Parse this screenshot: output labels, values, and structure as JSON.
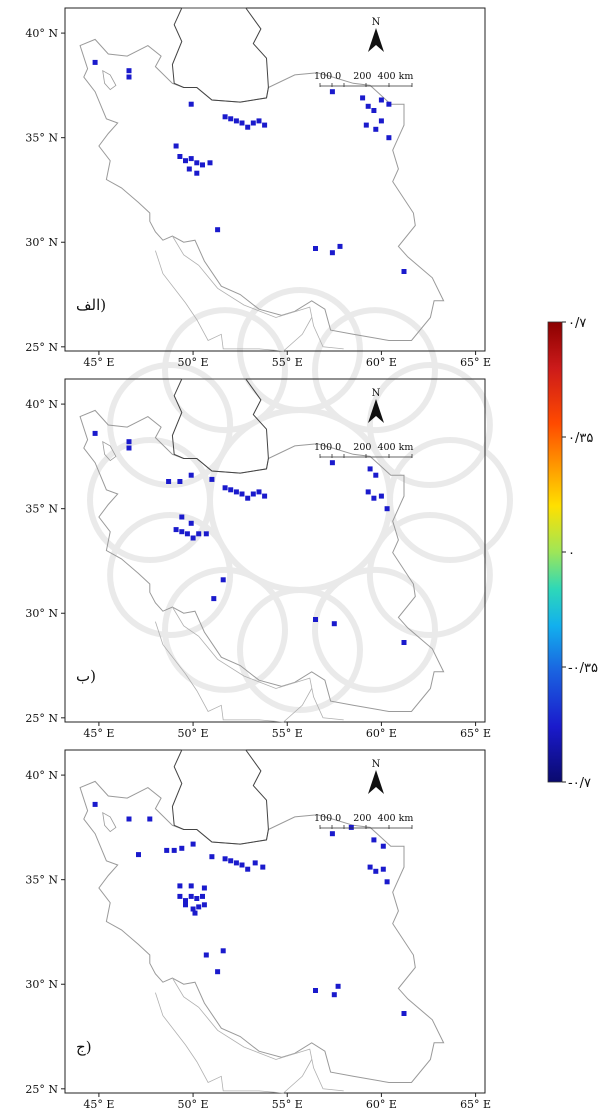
{
  "maps": [
    {
      "panel_label": "الف)",
      "points": [
        [
          44.8,
          38.6
        ],
        [
          46.6,
          38.2
        ],
        [
          46.6,
          37.9
        ],
        [
          49.9,
          36.6
        ],
        [
          51.7,
          36.0
        ],
        [
          52.0,
          35.9
        ],
        [
          52.3,
          35.8
        ],
        [
          52.6,
          35.7
        ],
        [
          52.9,
          35.5
        ],
        [
          53.2,
          35.7
        ],
        [
          53.5,
          35.8
        ],
        [
          53.8,
          35.6
        ],
        [
          49.1,
          34.6
        ],
        [
          49.3,
          34.1
        ],
        [
          49.6,
          33.9
        ],
        [
          49.9,
          34.0
        ],
        [
          50.2,
          33.8
        ],
        [
          50.5,
          33.7
        ],
        [
          50.9,
          33.8
        ],
        [
          49.8,
          33.5
        ],
        [
          50.2,
          33.3
        ],
        [
          51.3,
          30.6
        ],
        [
          56.5,
          29.7
        ],
        [
          57.4,
          29.5
        ],
        [
          57.8,
          29.8
        ],
        [
          57.4,
          37.2
        ],
        [
          59.0,
          36.9
        ],
        [
          59.3,
          36.5
        ],
        [
          59.6,
          36.3
        ],
        [
          60.0,
          36.8
        ],
        [
          60.4,
          36.6
        ],
        [
          59.2,
          35.6
        ],
        [
          59.7,
          35.4
        ],
        [
          60.0,
          35.8
        ],
        [
          60.4,
          35.0
        ],
        [
          61.2,
          28.6
        ]
      ]
    },
    {
      "panel_label": "ب)",
      "points": [
        [
          44.8,
          38.6
        ],
        [
          46.6,
          38.2
        ],
        [
          46.6,
          37.9
        ],
        [
          48.7,
          36.3
        ],
        [
          49.3,
          36.3
        ],
        [
          49.9,
          36.6
        ],
        [
          51.0,
          36.4
        ],
        [
          51.7,
          36.0
        ],
        [
          52.0,
          35.9
        ],
        [
          52.3,
          35.8
        ],
        [
          52.6,
          35.7
        ],
        [
          52.9,
          35.5
        ],
        [
          53.2,
          35.7
        ],
        [
          53.5,
          35.8
        ],
        [
          53.8,
          35.6
        ],
        [
          49.4,
          34.6
        ],
        [
          49.1,
          34.0
        ],
        [
          49.4,
          33.9
        ],
        [
          49.7,
          33.8
        ],
        [
          50.0,
          33.6
        ],
        [
          50.3,
          33.8
        ],
        [
          50.7,
          33.8
        ],
        [
          49.9,
          34.3
        ],
        [
          51.1,
          30.7
        ],
        [
          51.6,
          31.6
        ],
        [
          56.5,
          29.7
        ],
        [
          57.5,
          29.5
        ],
        [
          57.4,
          37.2
        ],
        [
          59.4,
          36.9
        ],
        [
          59.7,
          36.6
        ],
        [
          59.3,
          35.8
        ],
        [
          59.6,
          35.5
        ],
        [
          60.0,
          35.6
        ],
        [
          60.3,
          35.0
        ],
        [
          61.2,
          28.6
        ]
      ]
    },
    {
      "panel_label": "ج)",
      "points": [
        [
          44.8,
          38.6
        ],
        [
          46.6,
          37.9
        ],
        [
          47.7,
          37.9
        ],
        [
          47.1,
          36.2
        ],
        [
          48.6,
          36.4
        ],
        [
          49.0,
          36.4
        ],
        [
          49.4,
          36.5
        ],
        [
          50.0,
          36.7
        ],
        [
          51.0,
          36.1
        ],
        [
          51.7,
          36.0
        ],
        [
          52.0,
          35.9
        ],
        [
          52.3,
          35.8
        ],
        [
          52.6,
          35.7
        ],
        [
          52.9,
          35.5
        ],
        [
          53.3,
          35.8
        ],
        [
          53.7,
          35.6
        ],
        [
          49.3,
          34.7
        ],
        [
          49.3,
          34.2
        ],
        [
          49.6,
          34.0
        ],
        [
          49.9,
          34.2
        ],
        [
          50.2,
          34.1
        ],
        [
          50.5,
          34.2
        ],
        [
          49.6,
          33.8
        ],
        [
          50.0,
          33.6
        ],
        [
          50.3,
          33.7
        ],
        [
          50.6,
          33.8
        ],
        [
          50.1,
          33.4
        ],
        [
          50.6,
          34.6
        ],
        [
          49.9,
          34.7
        ],
        [
          50.7,
          31.4
        ],
        [
          51.6,
          31.6
        ],
        [
          51.3,
          30.6
        ],
        [
          56.5,
          29.7
        ],
        [
          57.5,
          29.5
        ],
        [
          57.7,
          29.9
        ],
        [
          57.4,
          37.2
        ],
        [
          58.4,
          37.5
        ],
        [
          59.6,
          36.9
        ],
        [
          60.1,
          36.6
        ],
        [
          59.4,
          35.6
        ],
        [
          59.7,
          35.4
        ],
        [
          60.1,
          35.5
        ],
        [
          60.3,
          34.9
        ],
        [
          61.2,
          28.6
        ]
      ]
    }
  ],
  "axes": {
    "x_ticks": [
      "45° E",
      "50° E",
      "55° E",
      "60° E",
      "65° E"
    ],
    "y_ticks": [
      "40° N",
      "35° N",
      "30° N",
      "25° N"
    ],
    "x_values": [
      45,
      50,
      55,
      60,
      65
    ],
    "y_values": [
      40,
      35,
      30,
      25
    ],
    "xlim": [
      43.2,
      65.5
    ],
    "ylim": [
      24.8,
      41.2
    ]
  },
  "north_label": "N",
  "scale_bar_text": "100 0    200  400 km",
  "point_color": "#1a1acc",
  "colorbar": {
    "labels": [
      "۰/۷",
      "۰/۳۵",
      "۰",
      "-۰/۳۵",
      "-۰/۷"
    ],
    "values": [
      0.7,
      0.35,
      0,
      -0.35,
      -0.7
    ],
    "colors": [
      "#8b0000",
      "#e02020",
      "#ff7a00",
      "#ffd400",
      "#c8e632",
      "#3ad6b0",
      "#1aa8e8",
      "#1a5ce0",
      "#1a1acc",
      "#0a0a6e"
    ]
  }
}
